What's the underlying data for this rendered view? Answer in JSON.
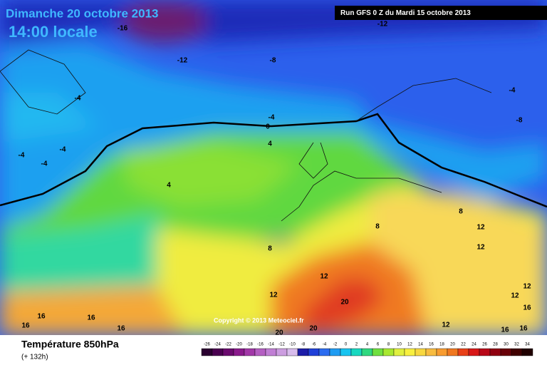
{
  "header": {
    "date": "Dimanche 20 octobre 2013",
    "time": "14:00 locale",
    "run": "Run GFS 0 Z du Mardi 15 octobre 2013"
  },
  "map": {
    "contour_labels": [
      -16,
      -12,
      -8,
      -12,
      -8,
      -4,
      -4,
      -4,
      -4,
      -4,
      -4,
      0,
      4,
      4,
      8,
      8,
      8,
      12,
      12,
      12,
      12,
      12,
      12,
      12,
      16,
      16,
      16,
      16,
      16,
      16,
      16,
      20,
      20,
      20
    ],
    "copyright": "Copyright © 2013 Meteociel.fr"
  },
  "footer": {
    "title": "Température 850hPa",
    "lead": "(+ 132h)",
    "scale": {
      "values": [
        -26,
        -24,
        -22,
        -20,
        -18,
        -16,
        -14,
        -12,
        -10,
        -8,
        -6,
        -4,
        -2,
        0,
        2,
        4,
        6,
        8,
        10,
        12,
        14,
        16,
        18,
        20,
        22,
        24,
        26,
        28,
        30,
        32,
        34
      ],
      "colors": [
        "#2a0030",
        "#4a0050",
        "#6a0a6e",
        "#8a1a8c",
        "#a238a8",
        "#b45ec2",
        "#c07ed4",
        "#cc9de0",
        "#d8bcec",
        "#1c1ca8",
        "#2040d8",
        "#2c6cf0",
        "#1f9cf2",
        "#18c4f0",
        "#18d8c0",
        "#30d880",
        "#70e040",
        "#a8e830",
        "#e0f040",
        "#f8f040",
        "#f8d840",
        "#f8bc40",
        "#f89c30",
        "#f07820",
        "#e84018",
        "#d81818",
        "#b80818",
        "#900010",
        "#680008",
        "#400000",
        "#200000"
      ]
    }
  }
}
